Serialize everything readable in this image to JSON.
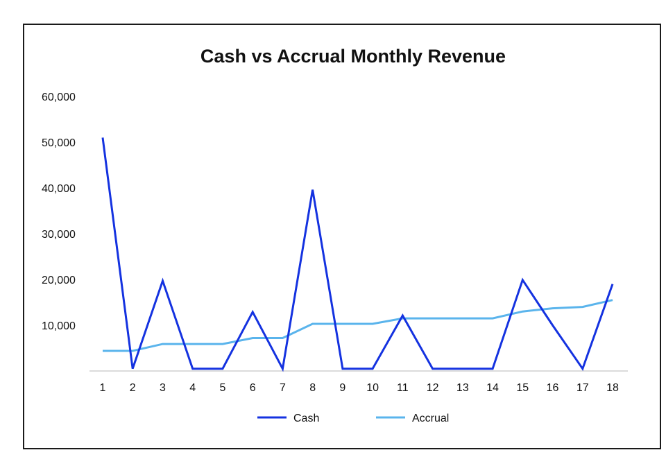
{
  "chart_data": {
    "type": "line",
    "title": "Cash vs Accrual Monthly Revenue",
    "xlabel": "",
    "ylabel": "",
    "categories": [
      "1",
      "2",
      "3",
      "4",
      "5",
      "6",
      "7",
      "8",
      "9",
      "10",
      "11",
      "12",
      "13",
      "14",
      "15",
      "16",
      "17",
      "18"
    ],
    "y_ticks": [
      {
        "value": 10000,
        "label": "10,000"
      },
      {
        "value": 20000,
        "label": "20,000"
      },
      {
        "value": 30000,
        "label": "30,000"
      },
      {
        "value": 40000,
        "label": "40,000"
      },
      {
        "value": 50000,
        "label": "50,000"
      },
      {
        "value": 60000,
        "label": "60,000"
      }
    ],
    "ylim": [
      0,
      60000
    ],
    "grid": false,
    "legend_position": "bottom",
    "series": [
      {
        "name": "Cash",
        "color": "#1432e0",
        "values": [
          51000,
          500,
          19700,
          500,
          500,
          12900,
          500,
          39600,
          500,
          500,
          12100,
          500,
          500,
          500,
          19900,
          10000,
          500,
          19000
        ]
      },
      {
        "name": "Accrual",
        "color": "#5ab4ec",
        "values": [
          4400,
          4400,
          5900,
          5900,
          5900,
          7200,
          7200,
          10300,
          10300,
          10300,
          11500,
          11500,
          11500,
          11500,
          13000,
          13700,
          14000,
          15500
        ]
      }
    ]
  }
}
